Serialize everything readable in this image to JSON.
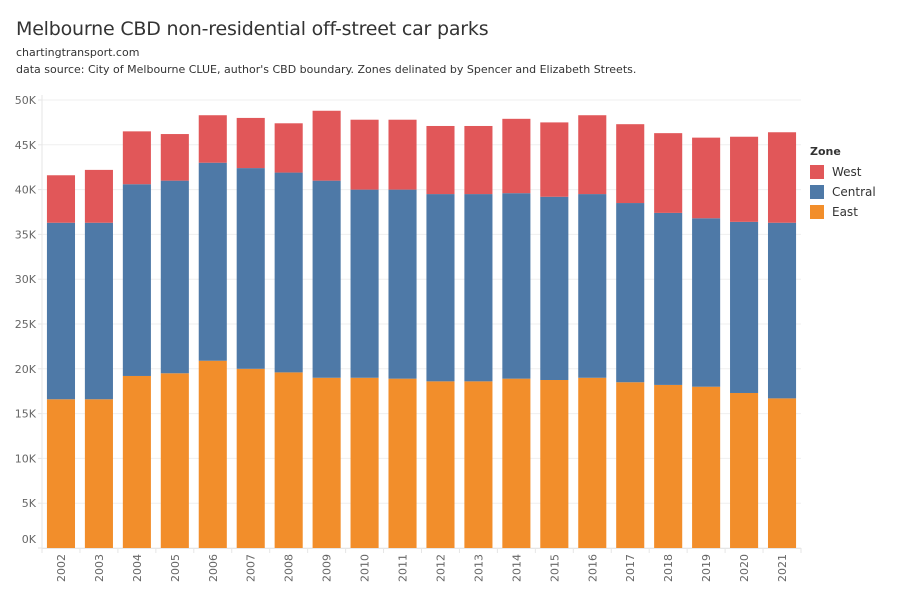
{
  "header": {
    "title": "Melbourne CBD non-residential off-street car parks",
    "subtitle1": "chartingtransport.com",
    "subtitle2": "data source: City of Melbourne CLUE, author's CBD boundary. Zones delinated by Spencer and Elizabeth Streets."
  },
  "legend": {
    "title": "Zone",
    "items": [
      {
        "label": "West",
        "color": "#E15759"
      },
      {
        "label": "Central",
        "color": "#4E79A7"
      },
      {
        "label": "East",
        "color": "#F28E2B"
      }
    ]
  },
  "chart_data": {
    "type": "bar",
    "stacked": true,
    "title": "Melbourne CBD non-residential off-street car parks",
    "xlabel": "",
    "ylabel": "",
    "ylim": [
      0,
      50000
    ],
    "yticks": [
      0,
      5000,
      10000,
      15000,
      20000,
      25000,
      30000,
      35000,
      40000,
      45000,
      50000
    ],
    "ytick_labels": [
      "0K",
      "5K",
      "10K",
      "15K",
      "20K",
      "25K",
      "30K",
      "35K",
      "40K",
      "45K",
      "50K"
    ],
    "grid": true,
    "legend_position": "right",
    "categories": [
      "2002",
      "2003",
      "2004",
      "2005",
      "2006",
      "2007",
      "2008",
      "2009",
      "2010",
      "2011",
      "2012",
      "2013",
      "2014",
      "2015",
      "2016",
      "2017",
      "2018",
      "2019",
      "2020",
      "2021"
    ],
    "series": [
      {
        "name": "East",
        "color": "#F28E2B",
        "values": [
          16600,
          16600,
          19200,
          19500,
          20900,
          20000,
          19600,
          19000,
          19000,
          18900,
          18600,
          18600,
          18900,
          18750,
          19000,
          18500,
          18200,
          18000,
          17300,
          16700
        ]
      },
      {
        "name": "Central",
        "color": "#4E79A7",
        "values": [
          19700,
          19700,
          21400,
          21500,
          22100,
          22400,
          22300,
          22000,
          21000,
          21100,
          20900,
          20900,
          20700,
          20450,
          20500,
          20000,
          19200,
          18800,
          19100,
          19600
        ]
      },
      {
        "name": "West",
        "color": "#E15759",
        "values": [
          5300,
          5900,
          5900,
          5200,
          5300,
          5600,
          5500,
          7800,
          7800,
          7800,
          7600,
          7600,
          8300,
          8300,
          8800,
          8800,
          8900,
          9000,
          9500,
          10100
        ]
      }
    ],
    "totals": [
      41600,
      42200,
      46500,
      46200,
      48300,
      48000,
      47400,
      48800,
      47800,
      47800,
      47100,
      47100,
      47900,
      47500,
      48300,
      47300,
      46300,
      45800,
      45900,
      46400
    ]
  }
}
